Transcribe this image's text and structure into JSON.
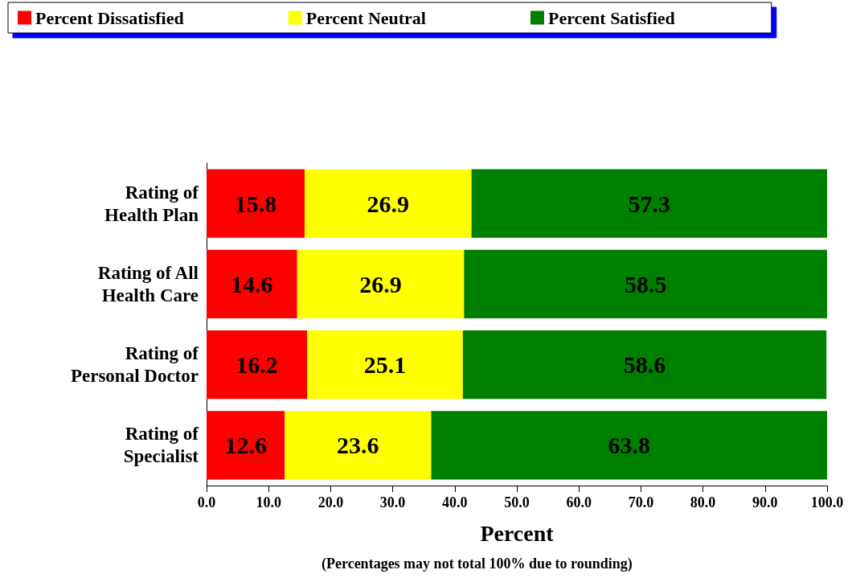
{
  "chart_data": {
    "type": "bar",
    "orientation": "horizontal",
    "stacked": true,
    "categories": [
      "Rating of\nHealth Plan",
      "Rating of All\nHealth Care",
      "Rating of\nPersonal Doctor",
      "Rating of\nSpecialist"
    ],
    "series": [
      {
        "name": "Percent Dissatisfied",
        "color": "#ff0000",
        "values": [
          15.8,
          14.6,
          16.2,
          12.6
        ]
      },
      {
        "name": "Percent Neutral",
        "color": "#ffff00",
        "values": [
          26.9,
          26.9,
          25.1,
          23.6
        ]
      },
      {
        "name": "Percent Satisfied",
        "color": "#008000",
        "values": [
          57.3,
          58.5,
          58.6,
          63.8
        ]
      }
    ],
    "xlabel": "Percent",
    "annotations": [
      "(Percentages may not total 100% due to rounding)"
    ],
    "xlim": [
      0,
      100
    ],
    "xticks": [
      {
        "value": 0,
        "label": "0.0"
      },
      {
        "value": 10,
        "label": "10.0"
      },
      {
        "value": 20,
        "label": "20.0"
      },
      {
        "value": 30,
        "label": "30.0"
      },
      {
        "value": 40,
        "label": "40.0"
      },
      {
        "value": 50,
        "label": "50.0"
      },
      {
        "value": 60,
        "label": "60.0"
      },
      {
        "value": 70,
        "label": "70.0"
      },
      {
        "value": 80,
        "label": "80.0"
      },
      {
        "value": 90,
        "label": "90.0"
      },
      {
        "value": 100,
        "label": "100.0"
      }
    ],
    "data_labels": true,
    "grid": false,
    "legend": "top"
  }
}
